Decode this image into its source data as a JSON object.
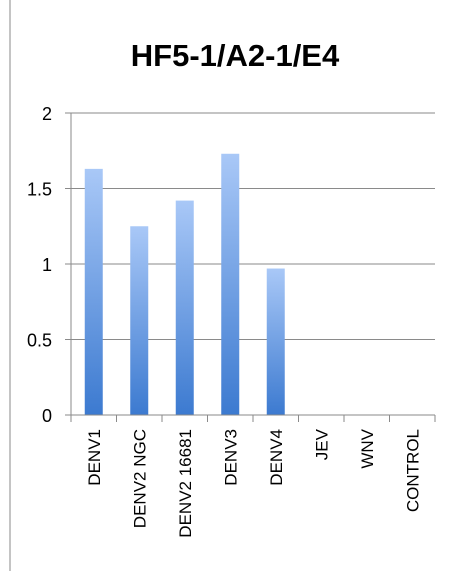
{
  "chart_data": {
    "type": "bar",
    "title": "HF5-1/A2-1/E4",
    "xlabel": "",
    "ylabel": "",
    "categories": [
      "DENV1",
      "DENV2 NGC",
      "DENV2 16681",
      "DENV3",
      "DENV4",
      "JEV",
      "WNV",
      "CONTROL"
    ],
    "values": [
      1.63,
      1.25,
      1.42,
      1.73,
      0.97,
      0,
      0,
      0
    ],
    "ylim": [
      0,
      2
    ],
    "yticks": [
      0,
      0.5,
      1,
      1.5,
      2
    ],
    "ytick_labels": [
      "0",
      "0.5",
      "1",
      "1.5",
      "2"
    ],
    "grid": true,
    "legend": "none",
    "bar_color_top": "#a9c8f7",
    "bar_color_bottom": "#3c7ad0"
  }
}
